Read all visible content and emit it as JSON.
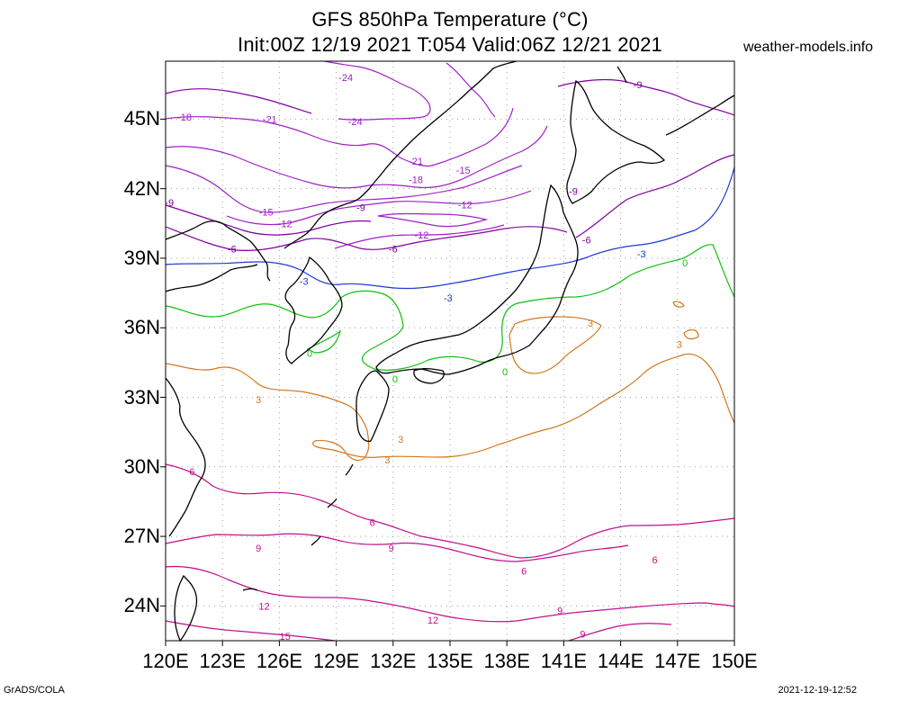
{
  "title": {
    "line1": "GFS 850hPa Temperature (°C)",
    "line2": "Init:00Z 12/19 2021 T:054 Valid:06Z 12/21 2021"
  },
  "site": "weather-models.info",
  "footer": {
    "left": "GrADS/COLA",
    "right": "2021-12-19-12:52"
  },
  "map": {
    "lon_range": [
      120,
      150
    ],
    "lat_range": [
      22.5,
      47.5
    ],
    "lat_ticks": [
      "45N",
      "42N",
      "39N",
      "36N",
      "33N",
      "30N",
      "27N",
      "24N"
    ],
    "lon_ticks": [
      "120E",
      "123E",
      "126E",
      "129E",
      "132E",
      "135E",
      "138E",
      "141E",
      "144E",
      "147E",
      "150E"
    ],
    "grid": "dotted",
    "colors": {
      "coastline": "#000000",
      "violet": "#a020c8",
      "purple": "#8000a0",
      "blue": "#1e3cd2",
      "green": "#10c010",
      "orange": "#d4781e",
      "magenta": "#c0108c"
    },
    "contour_labels": [
      {
        "text": "-24",
        "lon": 129.5,
        "lat": 46.8,
        "color": "violet"
      },
      {
        "text": "-24",
        "lon": 130.0,
        "lat": 44.9,
        "color": "violet"
      },
      {
        "text": "-21",
        "lon": 125.5,
        "lat": 45.0,
        "color": "violet"
      },
      {
        "text": "-21",
        "lon": 133.2,
        "lat": 43.2,
        "color": "violet"
      },
      {
        "text": "-18",
        "lon": 121.0,
        "lat": 45.1,
        "color": "violet"
      },
      {
        "text": "-18",
        "lon": 133.2,
        "lat": 42.4,
        "color": "violet"
      },
      {
        "text": "-15",
        "lon": 125.3,
        "lat": 41.0,
        "color": "violet"
      },
      {
        "text": "-15",
        "lon": 135.7,
        "lat": 42.8,
        "color": "violet"
      },
      {
        "text": "-12",
        "lon": 126.3,
        "lat": 40.5,
        "color": "violet"
      },
      {
        "text": "-12",
        "lon": 135.8,
        "lat": 41.3,
        "color": "violet"
      },
      {
        "text": "-12",
        "lon": 133.5,
        "lat": 40.0,
        "color": "violet"
      },
      {
        "text": "-9",
        "lon": 120.2,
        "lat": 41.4,
        "color": "purple"
      },
      {
        "text": "-9",
        "lon": 130.3,
        "lat": 41.2,
        "color": "purple"
      },
      {
        "text": "-9",
        "lon": 141.5,
        "lat": 41.9,
        "color": "purple"
      },
      {
        "text": "-9",
        "lon": 144.9,
        "lat": 46.5,
        "color": "purple"
      },
      {
        "text": "-6",
        "lon": 123.5,
        "lat": 39.4,
        "color": "purple"
      },
      {
        "text": "-6",
        "lon": 132.0,
        "lat": 39.4,
        "color": "purple"
      },
      {
        "text": "-6",
        "lon": 142.2,
        "lat": 39.8,
        "color": "purple"
      },
      {
        "text": "-3",
        "lon": 127.3,
        "lat": 38.0,
        "color": "blue"
      },
      {
        "text": "-3",
        "lon": 134.9,
        "lat": 37.3,
        "color": "blue"
      },
      {
        "text": "-3",
        "lon": 145.1,
        "lat": 39.2,
        "color": "blue"
      },
      {
        "text": "0",
        "lon": 127.6,
        "lat": 34.9,
        "color": "green"
      },
      {
        "text": "0",
        "lon": 132.1,
        "lat": 33.8,
        "color": "green"
      },
      {
        "text": "0",
        "lon": 137.9,
        "lat": 34.1,
        "color": "green"
      },
      {
        "text": "0",
        "lon": 147.4,
        "lat": 38.8,
        "color": "green"
      },
      {
        "text": "3",
        "lon": 124.9,
        "lat": 32.9,
        "color": "orange"
      },
      {
        "text": "3",
        "lon": 132.4,
        "lat": 31.2,
        "color": "orange"
      },
      {
        "text": "3",
        "lon": 131.7,
        "lat": 30.3,
        "color": "orange"
      },
      {
        "text": "3",
        "lon": 142.4,
        "lat": 36.2,
        "color": "orange"
      },
      {
        "text": "3",
        "lon": 147.1,
        "lat": 35.3,
        "color": "orange"
      },
      {
        "text": "6",
        "lon": 121.4,
        "lat": 29.8,
        "color": "magenta"
      },
      {
        "text": "6",
        "lon": 130.9,
        "lat": 27.6,
        "color": "magenta"
      },
      {
        "text": "6",
        "lon": 138.9,
        "lat": 25.5,
        "color": "magenta"
      },
      {
        "text": "6",
        "lon": 145.8,
        "lat": 26.0,
        "color": "magenta"
      },
      {
        "text": "9",
        "lon": 124.9,
        "lat": 26.5,
        "color": "magenta"
      },
      {
        "text": "9",
        "lon": 131.9,
        "lat": 26.5,
        "color": "magenta"
      },
      {
        "text": "9",
        "lon": 140.8,
        "lat": 23.8,
        "color": "magenta"
      },
      {
        "text": "9",
        "lon": 142.0,
        "lat": 22.8,
        "color": "magenta"
      },
      {
        "text": "12",
        "lon": 125.2,
        "lat": 24.0,
        "color": "magenta"
      },
      {
        "text": "12",
        "lon": 134.1,
        "lat": 23.4,
        "color": "magenta"
      },
      {
        "text": "15",
        "lon": 126.3,
        "lat": 22.7,
        "color": "magenta"
      }
    ]
  }
}
